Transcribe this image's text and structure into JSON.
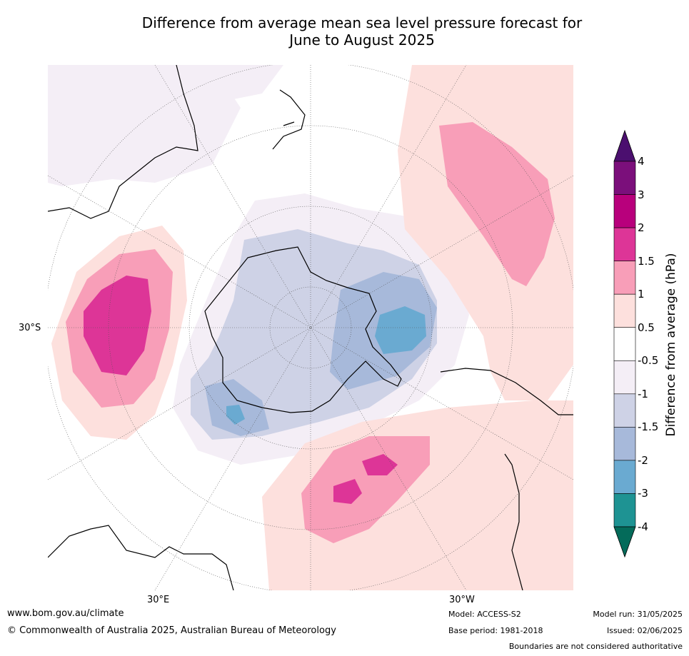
{
  "title_line1": "Difference from average mean sea level pressure forecast for",
  "title_line2": "June to August 2025",
  "map": {
    "lat_label": "30°S",
    "lon_label_left": "30°E",
    "lon_label_right": "30°W"
  },
  "colorbar": {
    "label": "Difference from average (hPa)",
    "ticks": [
      "4",
      "3",
      "2",
      "1.5",
      "1",
      "0.5",
      "-0.5",
      "-1",
      "-1.5",
      "-2",
      "-3",
      "-4"
    ],
    "colors": [
      "#4b0f6f",
      "#7b0f7b",
      "#b8007c",
      "#dd3597",
      "#f89eb8",
      "#fde0dd",
      "#ffffff",
      "#f4eef6",
      "#ced2e6",
      "#a7b9da",
      "#6aaad1",
      "#1e9393",
      "#046b5a"
    ]
  },
  "footer": {
    "website": "www.bom.gov.au/climate",
    "copyright": "© Commonwealth of Australia 2025, Australian Bureau of Meteorology",
    "model": "Model: ACCESS-S2",
    "base_period": "Base period: 1981-2018",
    "model_run": "Model run: 31/05/2025",
    "issued": "Issued: 02/06/2025",
    "disclaimer": "Boundaries are not considered authoritative"
  }
}
